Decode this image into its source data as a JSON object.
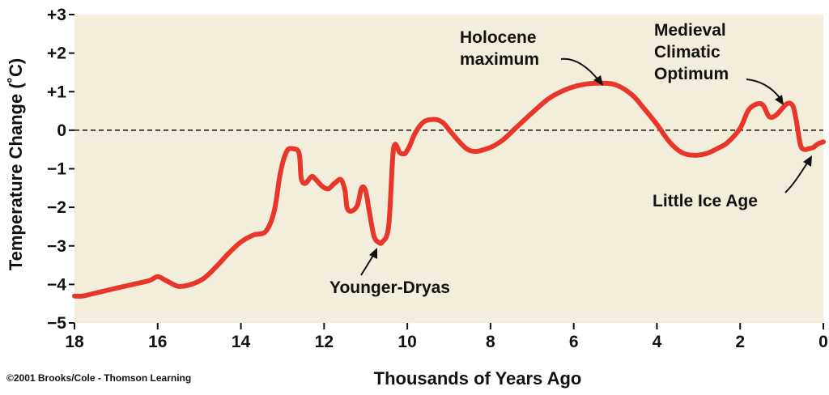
{
  "chart_data": {
    "type": "line",
    "title": "",
    "xlabel": "Thousands of Years Ago",
    "ylabel": "Temperature Change (˚C)",
    "xlim": [
      18,
      0
    ],
    "ylim": [
      -5,
      3
    ],
    "x_ticks": [
      18,
      16,
      14,
      12,
      10,
      8,
      6,
      4,
      2,
      0
    ],
    "x_tick_labels": [
      "18",
      "16",
      "14",
      "12",
      "10",
      "8",
      "6",
      "4",
      "2",
      "0"
    ],
    "y_ticks": [
      3,
      2,
      1,
      0,
      -1,
      -2,
      -3,
      -4,
      -5
    ],
    "y_tick_labels": [
      "+3",
      "+2",
      "+1",
      "0",
      "−1",
      "−2",
      "−3",
      "−4",
      "−5"
    ],
    "reference_line": 0,
    "grid": false,
    "series": [
      {
        "color": "#e8372a",
        "x": [
          18,
          17.8,
          17.4,
          17.0,
          16.6,
          16.2,
          16.0,
          15.8,
          15.5,
          15.2,
          14.9,
          14.6,
          14.3,
          14.0,
          13.7,
          13.4,
          13.2,
          13.05,
          12.9,
          12.75,
          12.6,
          12.55,
          12.45,
          12.3,
          12.2,
          12.05,
          11.9,
          11.75,
          11.6,
          11.5,
          11.45,
          11.35,
          11.2,
          11.1,
          11.0,
          10.9,
          10.8,
          10.7,
          10.6,
          10.45,
          10.35,
          10.3,
          10.25,
          10.2,
          10.15,
          10.05,
          9.95,
          9.8,
          9.6,
          9.35,
          9.15,
          8.95,
          8.75,
          8.55,
          8.35,
          8.15,
          7.95,
          7.7,
          7.4,
          7.0,
          6.6,
          6.2,
          5.8,
          5.4,
          5.0,
          4.6,
          4.3,
          4.0,
          3.7,
          3.4,
          3.1,
          2.8,
          2.5,
          2.3,
          2.0,
          1.8,
          1.6,
          1.45,
          1.3,
          1.15,
          1.0,
          0.9,
          0.8,
          0.72,
          0.65,
          0.55,
          0.45,
          0.35,
          0.25,
          0.12,
          0
        ],
        "y": [
          -4.3,
          -4.3,
          -4.2,
          -4.1,
          -4.0,
          -3.9,
          -3.8,
          -3.9,
          -4.05,
          -4.0,
          -3.85,
          -3.55,
          -3.2,
          -2.9,
          -2.72,
          -2.62,
          -2.1,
          -1.1,
          -0.55,
          -0.48,
          -0.6,
          -1.25,
          -1.38,
          -1.2,
          -1.28,
          -1.45,
          -1.52,
          -1.38,
          -1.28,
          -1.55,
          -2.0,
          -2.1,
          -1.95,
          -1.5,
          -1.58,
          -2.2,
          -2.75,
          -2.9,
          -2.9,
          -2.5,
          -0.7,
          -0.38,
          -0.42,
          -0.55,
          -0.6,
          -0.6,
          -0.42,
          -0.05,
          0.22,
          0.28,
          0.2,
          -0.05,
          -0.3,
          -0.5,
          -0.55,
          -0.5,
          -0.42,
          -0.25,
          0.05,
          0.45,
          0.82,
          1.05,
          1.18,
          1.22,
          1.18,
          0.92,
          0.55,
          0.15,
          -0.3,
          -0.58,
          -0.65,
          -0.6,
          -0.45,
          -0.32,
          0.05,
          0.52,
          0.68,
          0.65,
          0.35,
          0.38,
          0.55,
          0.67,
          0.7,
          0.6,
          0.25,
          -0.38,
          -0.5,
          -0.48,
          -0.45,
          -0.35,
          -0.3
        ]
      }
    ],
    "annotations": [
      {
        "lines": [
          "Holocene",
          "maximum"
        ]
      },
      {
        "lines": [
          "Medieval",
          "Climatic",
          "Optimum"
        ]
      },
      {
        "lines": [
          "Younger-Dryas"
        ]
      },
      {
        "lines": [
          "Little Ice Age"
        ]
      }
    ],
    "credit": "©2001 Brooks/Cole - Thomson Learning"
  }
}
